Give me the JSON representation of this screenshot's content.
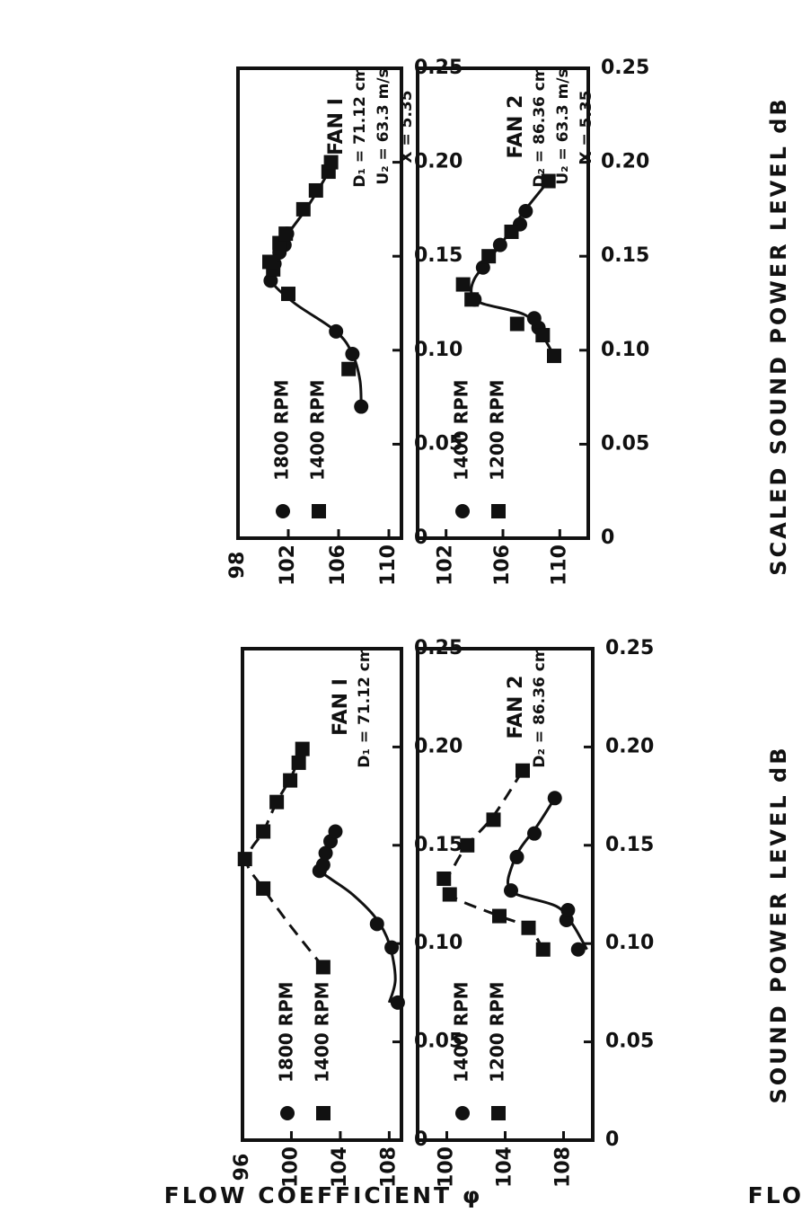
{
  "page_labels": {
    "ylabel_lower": "SOUND POWER LEVEL dB",
    "ylabel_upper": "SCALED SOUND POWER LEVEL dB",
    "xlabel_left": "FLOW COEFFICIENT φ",
    "xlabel_right": "FLOW COEFFICIENT φ"
  },
  "chart_data": [
    {
      "id": "p1",
      "type": "scatter",
      "title": "FAN I",
      "annotations": [
        "D₁ = 71.12 cm"
      ],
      "xlabel": "FLOW COEFFICIENT φ",
      "ylabel": "SOUND POWER LEVEL dB",
      "xlim": [
        0,
        0.25
      ],
      "ylim": [
        96,
        109
      ],
      "xticks": [
        "0",
        "0.05",
        "0.10",
        "0.15",
        "0.20",
        "0.25"
      ],
      "yticks": [
        "96",
        "100",
        "104",
        "108"
      ],
      "ytick_values": [
        96,
        100,
        104,
        108
      ],
      "series": [
        {
          "name": "1800 RPM",
          "marker": "circle",
          "line": "solid",
          "points": [
            [
              0.07,
              108.7
            ],
            [
              0.098,
              108.2
            ],
            [
              0.11,
              107.0
            ],
            [
              0.137,
              102.3
            ],
            [
              0.14,
              102.6
            ],
            [
              0.146,
              102.8
            ],
            [
              0.152,
              103.2
            ],
            [
              0.157,
              103.6
            ]
          ],
          "curve": [
            [
              0.07,
              108.0
            ],
            [
              0.082,
              108.5
            ],
            [
              0.1,
              108.0
            ],
            [
              0.113,
              106.9
            ],
            [
              0.125,
              105.0
            ],
            [
              0.133,
              103.2
            ],
            [
              0.137,
              102.4
            ],
            [
              0.142,
              102.4
            ],
            [
              0.15,
              103.0
            ],
            [
              0.158,
              103.7
            ]
          ]
        },
        {
          "name": "1400 RPM",
          "marker": "square",
          "line": "dashed",
          "points": [
            [
              0.088,
              102.6
            ],
            [
              0.128,
              97.7
            ],
            [
              0.143,
              96.2
            ],
            [
              0.157,
              97.7
            ],
            [
              0.172,
              98.8
            ],
            [
              0.183,
              99.9
            ],
            [
              0.192,
              100.6
            ],
            [
              0.199,
              100.9
            ]
          ],
          "curve": [
            [
              0.088,
              102.6
            ],
            [
              0.11,
              99.8
            ],
            [
              0.128,
              97.7
            ],
            [
              0.14,
              96.4
            ],
            [
              0.148,
              96.7
            ],
            [
              0.157,
              97.7
            ],
            [
              0.172,
              98.8
            ],
            [
              0.185,
              100.0
            ],
            [
              0.199,
              100.9
            ]
          ]
        }
      ]
    },
    {
      "id": "p2",
      "type": "scatter",
      "title": "FAN 2",
      "annotations": [
        "D₂ = 86.36 cm"
      ],
      "xlabel": "FLOW COEFFICIENT φ",
      "ylabel": "SOUND POWER LEVEL dB",
      "xlim": [
        0,
        0.25
      ],
      "ylim": [
        98,
        110
      ],
      "xticks": [
        "0",
        "0.05",
        "0.10",
        "0.15",
        "0.20",
        "0.25"
      ],
      "yticks": [
        "100",
        "104",
        "108"
      ],
      "ytick_values": [
        100,
        104,
        108
      ],
      "series": [
        {
          "name": "1400 RPM",
          "marker": "circle",
          "line": "solid",
          "points": [
            [
              0.097,
              109.0
            ],
            [
              0.112,
              108.2
            ],
            [
              0.117,
              108.3
            ],
            [
              0.127,
              104.4
            ],
            [
              0.144,
              104.8
            ],
            [
              0.156,
              106.0
            ],
            [
              0.174,
              107.4
            ]
          ],
          "curve": [
            [
              0.097,
              109.6
            ],
            [
              0.11,
              108.6
            ],
            [
              0.119,
              107.5
            ],
            [
              0.125,
              104.8
            ],
            [
              0.13,
              104.2
            ],
            [
              0.138,
              104.4
            ],
            [
              0.148,
              105.0
            ],
            [
              0.16,
              106.2
            ],
            [
              0.174,
              107.4
            ]
          ]
        },
        {
          "name": "1200 RPM",
          "marker": "square",
          "line": "dashed",
          "points": [
            [
              0.097,
              106.6
            ],
            [
              0.108,
              105.6
            ],
            [
              0.114,
              103.6
            ],
            [
              0.125,
              100.2
            ],
            [
              0.133,
              99.8
            ],
            [
              0.15,
              101.4
            ],
            [
              0.163,
              103.2
            ],
            [
              0.188,
              105.2
            ]
          ],
          "curve": [
            [
              0.097,
              106.6
            ],
            [
              0.108,
              105.6
            ],
            [
              0.114,
              103.6
            ],
            [
              0.123,
              100.6
            ],
            [
              0.13,
              99.9
            ],
            [
              0.138,
              100.4
            ],
            [
              0.15,
              101.4
            ],
            [
              0.165,
              103.2
            ],
            [
              0.188,
              105.2
            ]
          ]
        }
      ]
    },
    {
      "id": "p3",
      "type": "scatter",
      "title": "FAN I",
      "annotations": [
        "D₁ = 71.12 cm",
        "U₂ = 63.3 m/s",
        "X = 5.35"
      ],
      "xlabel": "FLOW COEFFICIENT φ",
      "ylabel": "SCALED SOUND POWER LEVEL dB",
      "xlim": [
        0,
        0.25
      ],
      "ylim": [
        98,
        111
      ],
      "xticks": [
        "0",
        "0.05",
        "0.10",
        "0.15",
        "0.20",
        "0.25"
      ],
      "yticks": [
        "98",
        "102",
        "106",
        "110"
      ],
      "ytick_values": [
        98,
        102,
        106,
        110
      ],
      "series": [
        {
          "name": "1800 RPM",
          "marker": "circle",
          "line": "solid",
          "points": [
            [
              0.07,
              107.8
            ],
            [
              0.098,
              107.1
            ],
            [
              0.11,
              105.8
            ],
            [
              0.137,
              100.6
            ],
            [
              0.146,
              100.9
            ],
            [
              0.152,
              101.3
            ],
            [
              0.156,
              101.7
            ],
            [
              0.162,
              101.9
            ]
          ],
          "curve": [
            [
              0.07,
              107.8
            ],
            [
              0.084,
              107.7
            ],
            [
              0.098,
              107.1
            ],
            [
              0.11,
              105.8
            ],
            [
              0.125,
              102.5
            ],
            [
              0.137,
              100.6
            ],
            [
              0.145,
              100.7
            ],
            [
              0.16,
              101.8
            ],
            [
              0.176,
              103.5
            ],
            [
              0.195,
              105.2
            ],
            [
              0.202,
              105.5
            ]
          ]
        },
        {
          "name": "1400 RPM",
          "marker": "square",
          "line": "dashed",
          "points": [
            [
              0.09,
              106.8
            ],
            [
              0.13,
              102.0
            ],
            [
              0.143,
              100.8
            ],
            [
              0.147,
              100.5
            ],
            [
              0.157,
              101.3
            ],
            [
              0.162,
              101.8
            ],
            [
              0.175,
              103.2
            ],
            [
              0.185,
              104.2
            ],
            [
              0.195,
              105.2
            ],
            [
              0.2,
              105.4
            ]
          ],
          "curve": []
        }
      ]
    },
    {
      "id": "p4",
      "type": "scatter",
      "title": "FAN 2",
      "annotations": [
        "D₂ = 86.36 cm",
        "U₂ = 63.3 m/s",
        "X = 5.35"
      ],
      "xlabel": "FLOW COEFFICIENT φ",
      "ylabel": "SCALED SOUND POWER LEVEL dB",
      "xlim": [
        0,
        0.25
      ],
      "ylim": [
        100,
        112
      ],
      "xticks": [
        "0",
        "0.05",
        "0.10",
        "0.15",
        "0.20",
        "0.25"
      ],
      "yticks": [
        "102",
        "106",
        "110"
      ],
      "ytick_values": [
        102,
        106,
        110
      ],
      "series": [
        {
          "name": "1400 RPM",
          "marker": "circle",
          "line": "solid",
          "points": [
            [
              0.112,
              108.5
            ],
            [
              0.117,
              108.2
            ],
            [
              0.127,
              104.0
            ],
            [
              0.144,
              104.6
            ],
            [
              0.156,
              105.8
            ],
            [
              0.167,
              107.2
            ],
            [
              0.174,
              107.6
            ]
          ],
          "curve": [
            [
              0.097,
              109.6
            ],
            [
              0.11,
              108.6
            ],
            [
              0.119,
              107.5
            ],
            [
              0.125,
              104.5
            ],
            [
              0.13,
              103.8
            ],
            [
              0.138,
              104.0
            ],
            [
              0.148,
              105.0
            ],
            [
              0.16,
              106.2
            ],
            [
              0.174,
              107.5
            ],
            [
              0.19,
              109.2
            ]
          ]
        },
        {
          "name": "1200 RPM",
          "marker": "square",
          "line": "dashed",
          "points": [
            [
              0.097,
              109.6
            ],
            [
              0.108,
              108.8
            ],
            [
              0.114,
              107.0
            ],
            [
              0.127,
              103.8
            ],
            [
              0.135,
              103.2
            ],
            [
              0.15,
              105.0
            ],
            [
              0.163,
              106.6
            ],
            [
              0.19,
              109.2
            ]
          ],
          "curve": []
        }
      ]
    }
  ]
}
